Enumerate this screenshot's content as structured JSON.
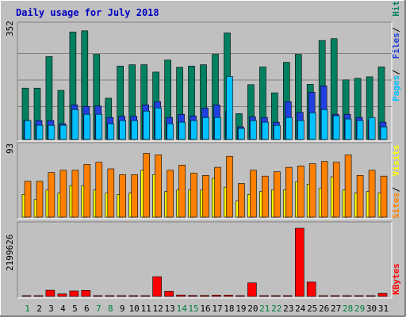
{
  "chart_data": [
    {
      "type": "bar",
      "title": "Daily usage for July 2018",
      "categories": [
        "1",
        "2",
        "3",
        "4",
        "5",
        "6",
        "7",
        "8",
        "9",
        "10",
        "11",
        "12",
        "13",
        "14",
        "15",
        "16",
        "17",
        "18",
        "19",
        "20",
        "21",
        "22",
        "23",
        "24",
        "25",
        "26",
        "27",
        "28",
        "29",
        "30",
        "31"
      ],
      "weekend_days": [
        "1",
        "7",
        "8",
        "14",
        "15",
        "21",
        "22",
        "28",
        "29"
      ],
      "ymax_label": "352",
      "ylim": [
        0,
        352
      ],
      "legend": [
        {
          "label": "Pages",
          "color": "#00c0ff"
        },
        {
          "label": "Files",
          "color": "#2040e0"
        },
        {
          "label": "Hits",
          "color": "#008060"
        }
      ],
      "series": [
        {
          "name": "Hits",
          "color": "#008060",
          "values": [
            163,
            163,
            263,
            156,
            341,
            345,
            270,
            131,
            233,
            237,
            237,
            214,
            252,
            229,
            233,
            237,
            270,
            338,
            82,
            174,
            230,
            148,
            245,
            270,
            175,
            314,
            320,
            189,
            194,
            199,
            230
          ]
        },
        {
          "name": "Files",
          "color": "#2040e0",
          "values": [
            60,
            60,
            60,
            50,
            110,
            105,
            106,
            70,
            74,
            74,
            110,
            120,
            70,
            80,
            75,
            100,
            110,
            90,
            40,
            72,
            70,
            55,
            120,
            86,
            150,
            170,
            80,
            80,
            70,
            60,
            55
          ]
        },
        {
          "name": "Pages",
          "color": "#00c0ff",
          "values": [
            60,
            45,
            45,
            45,
            95,
            80,
            80,
            50,
            60,
            60,
            90,
            100,
            50,
            55,
            60,
            70,
            70,
            200,
            35,
            60,
            55,
            45,
            70,
            60,
            85,
            95,
            75,
            65,
            60,
            70,
            40
          ]
        }
      ]
    },
    {
      "type": "bar",
      "ymax_label": "93",
      "ylim": [
        0,
        93
      ],
      "legend": [
        {
          "label": "Sites",
          "color": "#ff8000"
        },
        {
          "label": "Visits",
          "color": "#ffff00"
        }
      ],
      "series": [
        {
          "name": "Visits",
          "color": "#ffff00",
          "values": [
            31,
            24,
            37,
            33,
            43,
            43,
            37,
            33,
            31,
            33,
            64,
            58,
            35,
            37,
            37,
            37,
            53,
            41,
            22,
            31,
            35,
            37,
            37,
            48,
            45,
            39,
            55,
            37,
            33,
            35,
            33
          ]
        },
        {
          "name": "Sites",
          "color": "#ff8000",
          "values": [
            49,
            49,
            61,
            64,
            64,
            72,
            75,
            66,
            58,
            58,
            87,
            85,
            64,
            71,
            60,
            57,
            68,
            83,
            46,
            64,
            56,
            62,
            68,
            70,
            73,
            76,
            75,
            85,
            57,
            64,
            56
          ]
        }
      ]
    },
    {
      "type": "bar",
      "ymax_label": "2199626",
      "ylim": [
        0,
        2199626
      ],
      "legend": [
        {
          "label": "KBytes",
          "color": "#ff0000"
        }
      ],
      "series": [
        {
          "name": "KBytes",
          "color": "#ff0000",
          "values": [
            0,
            0,
            203000,
            81000,
            180000,
            197000,
            10000,
            10000,
            10000,
            10000,
            10000,
            638000,
            165000,
            45000,
            30000,
            30000,
            40000,
            40000,
            10000,
            441000,
            10000,
            10000,
            10000,
            2199626,
            462000,
            10000,
            10000,
            10000,
            10000,
            10000,
            99000
          ]
        }
      ]
    }
  ]
}
